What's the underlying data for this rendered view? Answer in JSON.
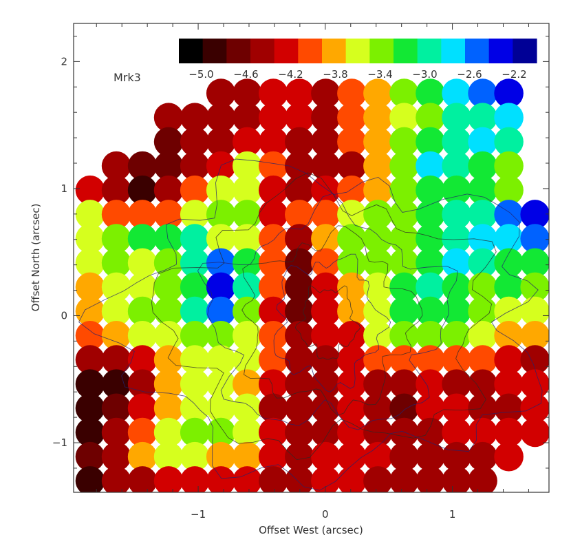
{
  "chart_data": {
    "type": "heatmap",
    "xlabel": "Offset West (arcsec)",
    "ylabel": "Offset North (arcsec)",
    "xlim": [
      -1.98,
      1.76
    ],
    "ylim": [
      -1.39,
      2.3
    ],
    "x_ticks": [
      -1,
      0,
      1
    ],
    "x_tick_labels": [
      "−1",
      "0",
      "1"
    ],
    "y_ticks": [
      -1,
      0,
      1,
      2
    ],
    "y_tick_labels": [
      "−1",
      "0",
      "1",
      "2"
    ],
    "annotation": "Mrk3",
    "grid": false,
    "colorbar": {
      "position": "top-inside",
      "colors": [
        "#000000",
        "#3a0000",
        "#6e0000",
        "#a00000",
        "#d20000",
        "#ff4a00",
        "#ffa800",
        "#d6ff1e",
        "#7cf000",
        "#12e834",
        "#00f0a0",
        "#00e0ff",
        "#0062ff",
        "#0000e6",
        "#000096"
      ],
      "tick_values": [
        -5.0,
        -4.6,
        -4.2,
        -3.8,
        -3.4,
        -3.0,
        -2.6,
        -2.2
      ],
      "tick_labels": [
        "−5.0",
        "−4.6",
        "−4.2",
        "−3.8",
        "−3.4",
        "−3.0",
        "−2.6",
        "−2.2"
      ],
      "range": [
        -5.2,
        -2.0
      ]
    },
    "cell_map": {
      "nx": 18,
      "ny": 17,
      "x_range": [
        -1.85,
        1.65
      ],
      "y_range": [
        -1.3,
        1.75
      ],
      "values": [
        [
          -9,
          -9,
          -9,
          -9,
          -9,
          -4.45,
          -4.4,
          -4.25,
          -4.2,
          -4.45,
          -4.05,
          -3.75,
          -3.45,
          -3.1,
          -2.8,
          -2.45,
          -2.4,
          -9
        ],
        [
          -9,
          -9,
          -9,
          -4.55,
          -4.55,
          -4.55,
          -4.45,
          -4.3,
          -4.25,
          -4.35,
          -4.1,
          -3.9,
          -3.55,
          -3.3,
          -3.05,
          -2.9,
          -2.7,
          -9
        ],
        [
          -9,
          -9,
          -9,
          -4.75,
          -4.5,
          -4.35,
          -4.3,
          -4.2,
          -4.55,
          -4.4,
          -4.0,
          -3.8,
          -3.4,
          -3.2,
          -3.0,
          -2.85,
          -3.0,
          -9
        ],
        [
          -9,
          -4.55,
          -4.6,
          -4.7,
          -4.35,
          -4.15,
          -3.7,
          -4.05,
          -4.5,
          -4.35,
          -4.55,
          -3.9,
          -3.3,
          -2.85,
          -2.9,
          -3.25,
          -3.4,
          -9
        ],
        [
          -4.2,
          -4.35,
          -4.85,
          -4.55,
          -4.0,
          -3.55,
          -3.5,
          -4.3,
          -4.45,
          -4.2,
          -4.05,
          -3.75,
          -3.4,
          -3.1,
          -3.25,
          -3.2,
          -3.45,
          -9
        ],
        [
          -3.7,
          -4.0,
          -4.0,
          -3.95,
          -3.7,
          -3.35,
          -3.3,
          -4.15,
          -4.1,
          -4.05,
          -3.55,
          -3.45,
          -3.4,
          -3.2,
          -2.9,
          -2.95,
          -2.55,
          -2.4
        ],
        [
          -3.55,
          -3.35,
          -3.25,
          -3.25,
          -3.0,
          -3.55,
          -3.7,
          -3.95,
          -4.35,
          -3.9,
          -3.45,
          -3.35,
          -3.45,
          -3.1,
          -2.95,
          -2.7,
          -2.7,
          -2.6
        ],
        [
          -3.65,
          -3.4,
          -3.55,
          -3.4,
          -2.95,
          -2.55,
          -3.2,
          -4.1,
          -4.65,
          -4.1,
          -3.4,
          -3.45,
          -3.3,
          -3.1,
          -2.85,
          -2.9,
          -3.1,
          -3.25
        ],
        [
          -3.75,
          -3.65,
          -3.55,
          -3.3,
          -3.1,
          -2.35,
          -3.0,
          -3.95,
          -4.7,
          -4.25,
          -3.75,
          -3.55,
          -3.1,
          -3.0,
          -3.2,
          -3.3,
          -3.25,
          -3.45
        ],
        [
          -3.85,
          -3.6,
          -3.4,
          -3.45,
          -3.0,
          -2.6,
          -3.45,
          -4.2,
          -4.6,
          -4.25,
          -3.9,
          -3.5,
          -3.2,
          -3.15,
          -3.25,
          -3.4,
          -3.55,
          -3.65
        ],
        [
          -4.0,
          -3.9,
          -3.55,
          -3.5,
          -3.35,
          -3.4,
          -3.55,
          -4.05,
          -4.5,
          -4.3,
          -4.2,
          -3.6,
          -3.45,
          -3.3,
          -3.45,
          -3.55,
          -3.75,
          -3.9
        ],
        [
          -4.55,
          -4.45,
          -4.15,
          -3.8,
          -3.55,
          -3.55,
          -3.7,
          -4.1,
          -4.55,
          -4.4,
          -4.25,
          -4.05,
          -3.95,
          -4.1,
          -4.0,
          -4.1,
          -4.2,
          -4.35
        ],
        [
          -4.95,
          -4.85,
          -4.35,
          -3.8,
          -3.55,
          -3.6,
          -3.75,
          -4.25,
          -4.55,
          -4.4,
          -4.2,
          -4.45,
          -4.35,
          -4.25,
          -4.35,
          -4.5,
          -4.3,
          -4.25
        ],
        [
          -4.9,
          -4.7,
          -4.2,
          -3.75,
          -3.55,
          -3.55,
          -3.7,
          -4.35,
          -4.55,
          -4.35,
          -4.3,
          -4.5,
          -4.6,
          -4.25,
          -4.3,
          -4.45,
          -4.35,
          -4.2
        ],
        [
          -4.85,
          -4.4,
          -3.95,
          -3.6,
          -3.45,
          -3.45,
          -3.65,
          -4.15,
          -4.45,
          -4.35,
          -4.25,
          -4.35,
          -4.55,
          -4.35,
          -4.2,
          -4.3,
          -4.25,
          -4.15
        ],
        [
          -4.75,
          -4.35,
          -3.85,
          -3.6,
          -3.65,
          -3.75,
          -3.9,
          -4.2,
          -4.35,
          -4.3,
          -4.25,
          -4.3,
          -4.35,
          -4.4,
          -4.55,
          -4.45,
          -4.2,
          -9
        ],
        [
          -4.8,
          -4.55,
          -4.45,
          -4.3,
          -4.2,
          -4.15,
          -4.25,
          -4.35,
          -4.4,
          -4.3,
          -4.25,
          -4.35,
          -4.4,
          -4.45,
          -4.5,
          -4.4,
          -9,
          -9
        ]
      ]
    }
  }
}
